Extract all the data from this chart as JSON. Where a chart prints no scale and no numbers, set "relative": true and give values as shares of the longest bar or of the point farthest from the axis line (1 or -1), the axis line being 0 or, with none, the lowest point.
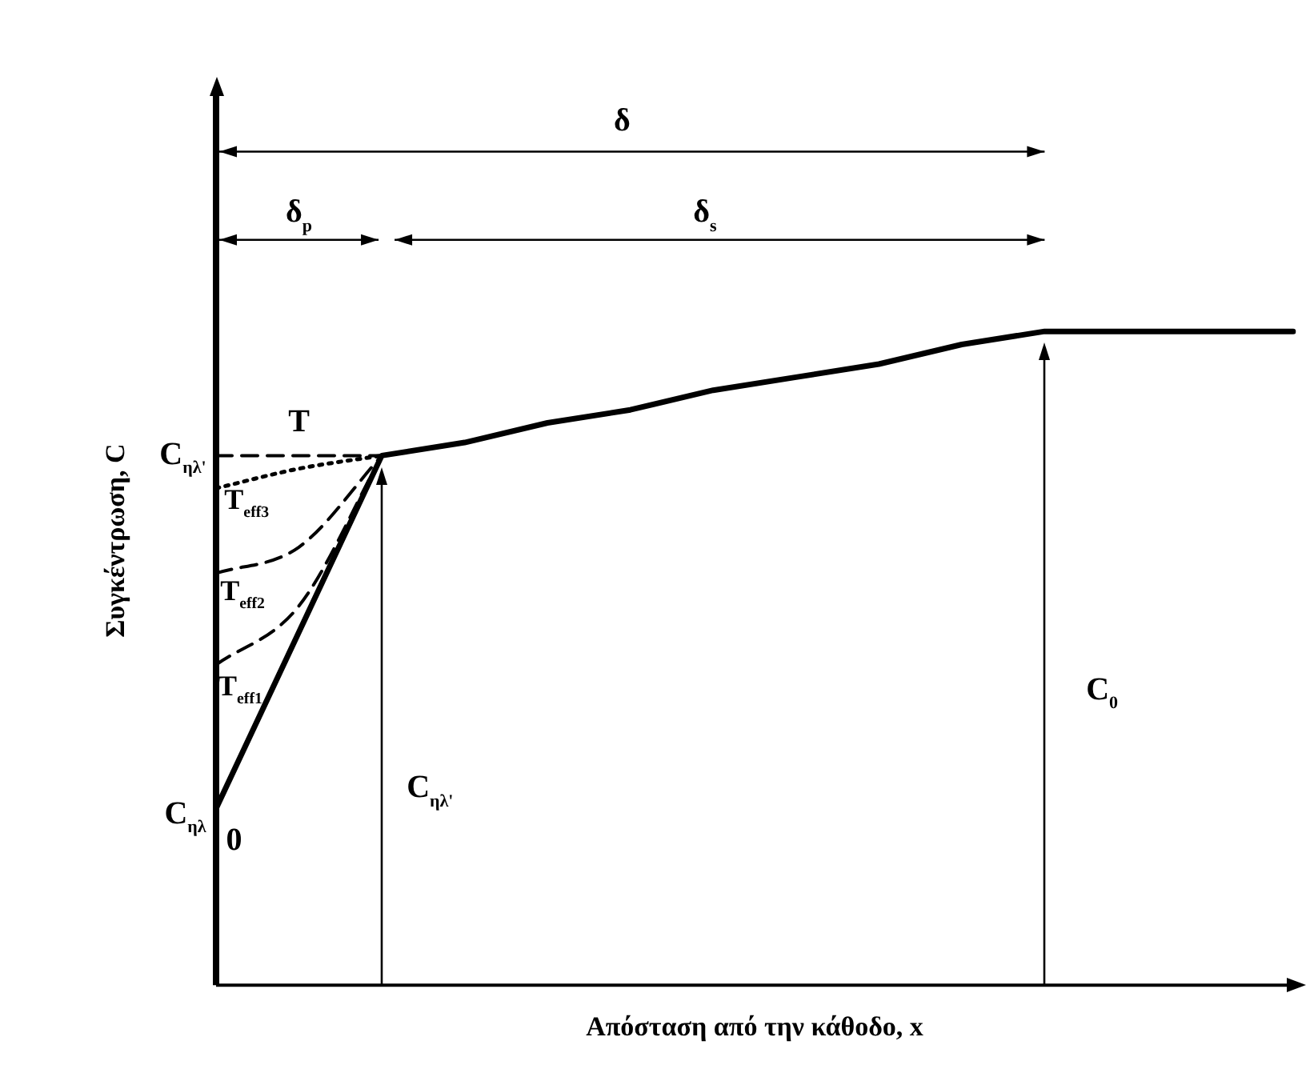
{
  "chart_data": {
    "type": "line",
    "relative": true,
    "xlabel": "Απόσταση από την κάθοδο, x",
    "ylabel": "Συγκέντρωση, C",
    "categories": [
      null,
      null,
      null,
      null,
      null,
      null,
      null,
      null,
      null,
      null,
      null,
      null,
      null,
      null
    ],
    "series": [
      {
        "color": "#000000",
        "line_style": "solid",
        "values": [
          0.27,
          0.54,
          0.81,
          0.83,
          0.86,
          0.88,
          0.91,
          0.93,
          0.95,
          0.98,
          1,
          1,
          1,
          1
        ]
      },
      {
        "color": "#000000",
        "line_style": "dashed",
        "values": [
          0.81,
          0.81,
          0.81,
          null,
          null,
          null,
          null,
          null,
          null,
          null,
          null,
          null,
          null,
          null
        ]
      },
      {
        "color": "#000000",
        "line_style": "dotted",
        "values": [
          0.76,
          0.79,
          0.81,
          null,
          null,
          null,
          null,
          null,
          null,
          null,
          null,
          null,
          null,
          null
        ]
      },
      {
        "color": "#000000",
        "line_style": "dashed",
        "values": [
          0.63,
          0.67,
          0.81,
          null,
          null,
          null,
          null,
          null,
          null,
          null,
          null,
          null,
          null,
          null
        ]
      },
      {
        "color": "#000000",
        "line_style": "dashed",
        "values": [
          0.49,
          0.58,
          0.81,
          null,
          null,
          null,
          null,
          null,
          null,
          null,
          null,
          null,
          null,
          null
        ]
      }
    ],
    "annotations": [
      "T",
      "C$_{ηλ'}$",
      "T$_{eff3}$",
      "T$_{eff2}$",
      "T$_{eff1}$",
      "C$_{ηλ}$",
      "0",
      "C$_{ηλ'}$",
      "C$_{0}$",
      "δ",
      "δ$_{p}$",
      "δ$_{s}$"
    ],
    "legend": false,
    "grid": false,
    "marker": "none"
  }
}
